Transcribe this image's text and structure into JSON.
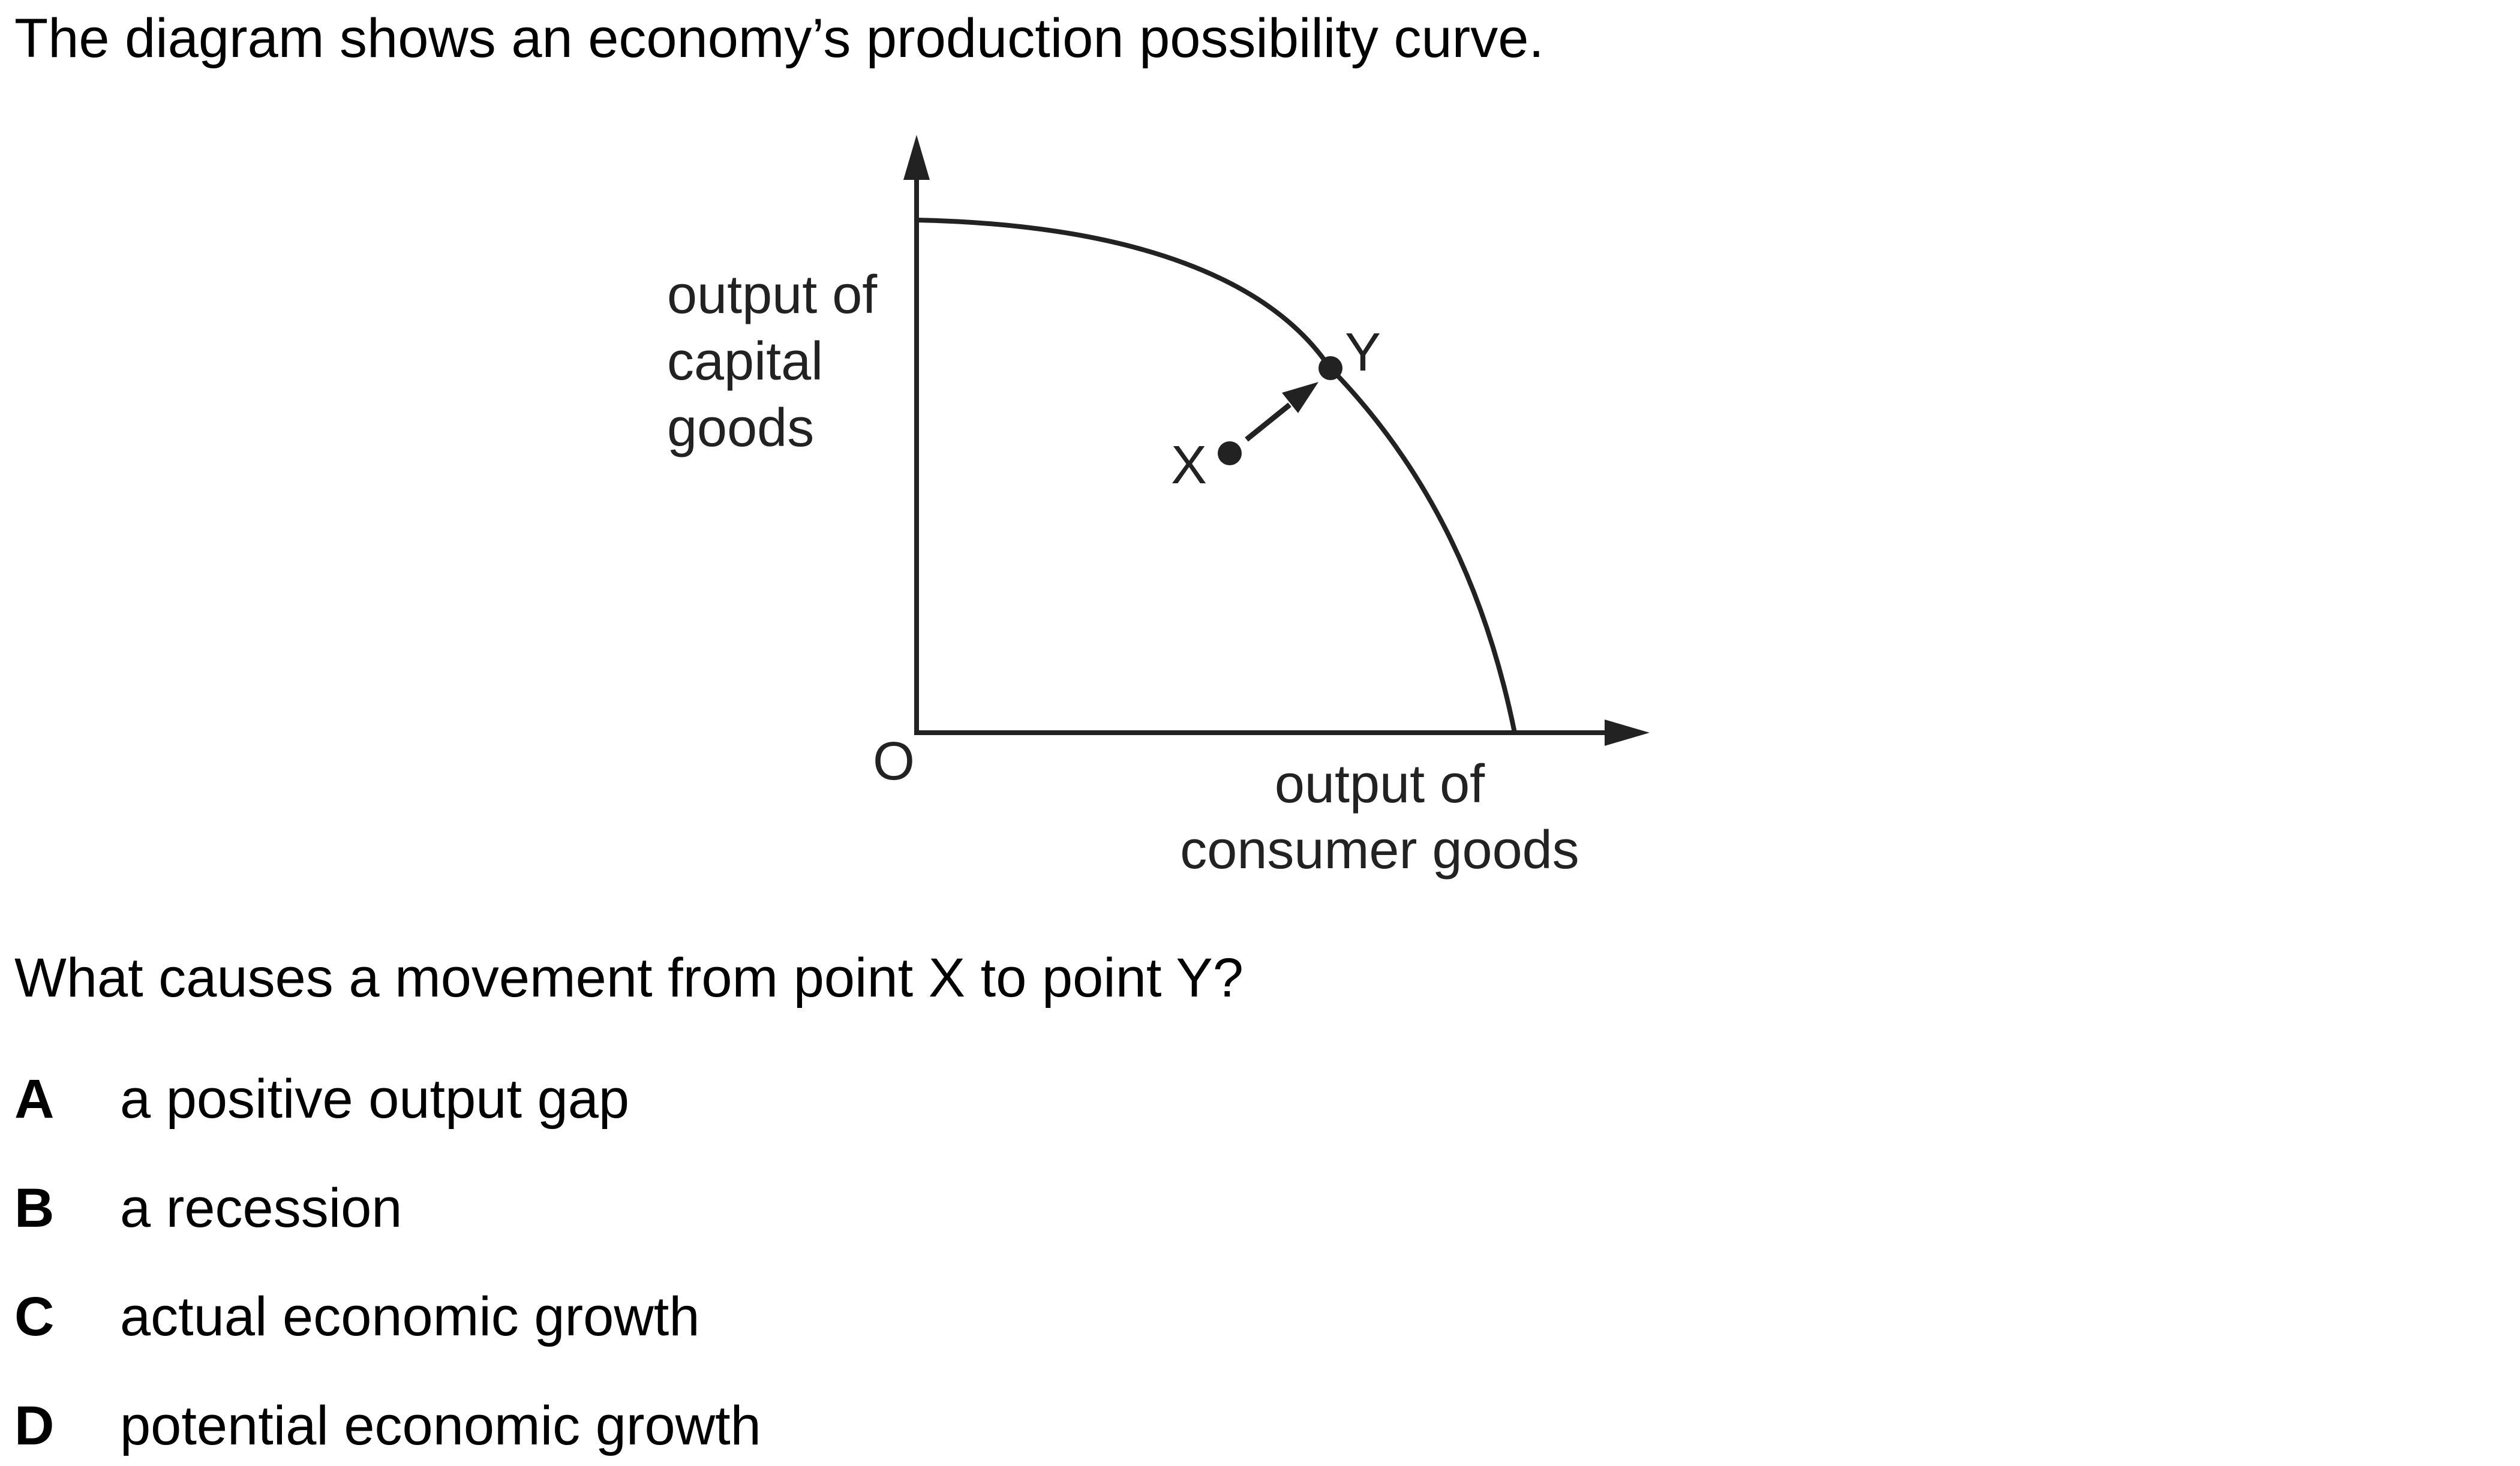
{
  "intro": "The diagram shows an economy’s production possibility curve.",
  "diagram": {
    "y_axis_label": [
      "output of",
      "capital",
      "goods"
    ],
    "x_axis_label": [
      "output of",
      "consumer goods"
    ],
    "origin_label": "O",
    "point_x_label": "X",
    "point_y_label": "Y",
    "line_color": "#222222"
  },
  "question": "What causes a movement from point X to point Y?",
  "options": [
    {
      "letter": "A",
      "text": "a positive output gap"
    },
    {
      "letter": "B",
      "text": "a recession"
    },
    {
      "letter": "C",
      "text": "actual economic growth"
    },
    {
      "letter": "D",
      "text": "potential economic growth"
    }
  ]
}
